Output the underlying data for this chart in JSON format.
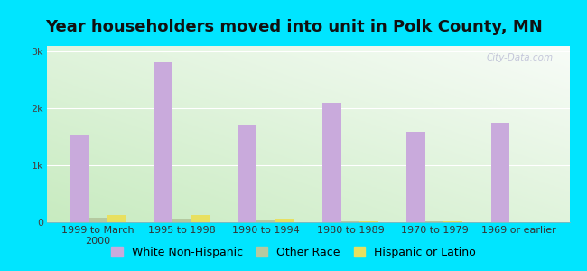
{
  "title": "Year householders moved into unit in Polk County, MN",
  "categories": [
    "1999 to March\n2000",
    "1995 to 1998",
    "1990 to 1994",
    "1980 to 1989",
    "1970 to 1979",
    "1969 or earlier"
  ],
  "white_non_hispanic": [
    1550,
    2820,
    1720,
    2100,
    1590,
    1750
  ],
  "other_race": [
    80,
    60,
    40,
    15,
    10,
    0
  ],
  "hispanic_or_latino": [
    130,
    120,
    70,
    20,
    10,
    0
  ],
  "bar_width": 0.22,
  "color_white": "#c9aadc",
  "color_other": "#b5c9a0",
  "color_hispanic": "#e8e060",
  "ylim": [
    0,
    3100
  ],
  "yticks": [
    0,
    1000,
    2000,
    3000
  ],
  "ytick_labels": [
    "0",
    "1k",
    "2k",
    "3k"
  ],
  "bg_outer": "#00e5ff",
  "watermark": "City-Data.com",
  "title_fontsize": 13,
  "tick_fontsize": 8,
  "legend_fontsize": 9
}
